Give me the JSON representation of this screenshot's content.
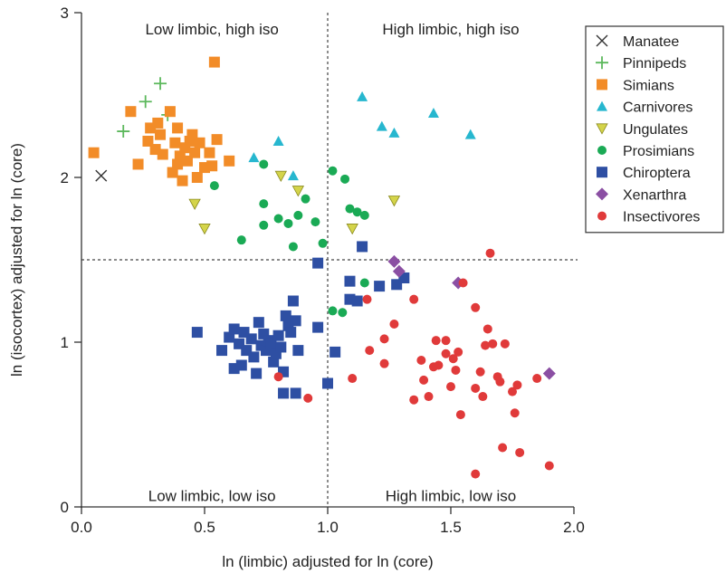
{
  "chart_data": {
    "type": "scatter",
    "title": "",
    "xlabel": "ln (limbic) adjusted for ln (core)",
    "ylabel": "ln (isocortex) adjusted for ln (core)",
    "xlim": [
      0,
      2
    ],
    "ylim": [
      0,
      3
    ],
    "xticks": [
      {
        "value": 0,
        "label": "0.0"
      },
      {
        "value": 0.5,
        "label": "0.5"
      },
      {
        "value": 1,
        "label": "1.0"
      },
      {
        "value": 1.5,
        "label": "1.5"
      },
      {
        "value": 2,
        "label": "2.0"
      }
    ],
    "yticks": [
      {
        "value": 0,
        "label": "0"
      },
      {
        "value": 1,
        "label": "1"
      },
      {
        "value": 2,
        "label": "2"
      },
      {
        "value": 3,
        "label": "3"
      }
    ],
    "grid": false,
    "reference_lines": {
      "x": 1.0,
      "y": 1.5
    },
    "quadrant_labels": [
      {
        "text": "Low limbic, high iso",
        "x": 0.53,
        "y": 2.9
      },
      {
        "text": "High limbic, high iso",
        "x": 1.5,
        "y": 2.9
      },
      {
        "text": "Low limbic, low iso",
        "x": 0.53,
        "y": 0.07
      },
      {
        "text": "High limbic, low iso",
        "x": 1.5,
        "y": 0.07
      }
    ],
    "legend_position": "right",
    "series": [
      {
        "name": "Manatee",
        "marker": "x",
        "color": "#333333",
        "points": [
          [
            0.08,
            2.01
          ]
        ]
      },
      {
        "name": "Pinnipeds",
        "marker": "plus",
        "color": "#5cb85c",
        "points": [
          [
            0.17,
            2.28
          ],
          [
            0.26,
            2.46
          ],
          [
            0.32,
            2.57
          ],
          [
            0.35,
            2.38
          ]
        ]
      },
      {
        "name": "Simians",
        "marker": "square",
        "color": "#f28c28",
        "points": [
          [
            0.05,
            2.15
          ],
          [
            0.2,
            2.4
          ],
          [
            0.23,
            2.08
          ],
          [
            0.27,
            2.22
          ],
          [
            0.28,
            2.3
          ],
          [
            0.3,
            2.17
          ],
          [
            0.31,
            2.33
          ],
          [
            0.32,
            2.26
          ],
          [
            0.33,
            2.14
          ],
          [
            0.36,
            2.4
          ],
          [
            0.37,
            2.03
          ],
          [
            0.38,
            2.21
          ],
          [
            0.39,
            2.3
          ],
          [
            0.39,
            2.08
          ],
          [
            0.4,
            2.13
          ],
          [
            0.41,
            1.98
          ],
          [
            0.42,
            2.18
          ],
          [
            0.43,
            2.1
          ],
          [
            0.44,
            2.22
          ],
          [
            0.45,
            2.26
          ],
          [
            0.46,
            2.15
          ],
          [
            0.47,
            2.0
          ],
          [
            0.48,
            2.21
          ],
          [
            0.5,
            2.06
          ],
          [
            0.52,
            2.15
          ],
          [
            0.53,
            2.07
          ],
          [
            0.55,
            2.23
          ],
          [
            0.6,
            2.1
          ],
          [
            0.54,
            2.7
          ]
        ]
      },
      {
        "name": "Carnivores",
        "marker": "triangle-up",
        "color": "#27b7cf",
        "points": [
          [
            0.7,
            2.12
          ],
          [
            0.8,
            2.22
          ],
          [
            0.86,
            2.01
          ],
          [
            1.14,
            2.49
          ],
          [
            1.22,
            2.31
          ],
          [
            1.27,
            2.27
          ],
          [
            1.43,
            2.39
          ],
          [
            1.58,
            2.26
          ]
        ]
      },
      {
        "name": "Ungulates",
        "marker": "triangle-down",
        "color": "#d4d44a",
        "points": [
          [
            0.46,
            1.84
          ],
          [
            0.5,
            1.69
          ],
          [
            0.81,
            2.01
          ],
          [
            0.88,
            1.92
          ],
          [
            1.1,
            1.69
          ],
          [
            1.27,
            1.86
          ]
        ]
      },
      {
        "name": "Prosimians",
        "marker": "circle",
        "color": "#1aaa55",
        "points": [
          [
            0.54,
            1.95
          ],
          [
            0.65,
            1.62
          ],
          [
            0.74,
            2.08
          ],
          [
            0.74,
            1.84
          ],
          [
            0.74,
            1.71
          ],
          [
            0.8,
            1.75
          ],
          [
            0.84,
            1.72
          ],
          [
            0.86,
            1.58
          ],
          [
            0.88,
            1.77
          ],
          [
            0.91,
            1.87
          ],
          [
            0.95,
            1.73
          ],
          [
            0.98,
            1.6
          ],
          [
            1.02,
            2.04
          ],
          [
            1.07,
            1.99
          ],
          [
            1.09,
            1.81
          ],
          [
            1.12,
            1.79
          ],
          [
            1.15,
            1.77
          ],
          [
            1.15,
            1.36
          ],
          [
            1.02,
            1.19
          ],
          [
            1.06,
            1.18
          ]
        ]
      },
      {
        "name": "Chiroptera",
        "marker": "square",
        "color": "#2e4fa3",
        "points": [
          [
            0.47,
            1.06
          ],
          [
            0.57,
            0.95
          ],
          [
            0.6,
            1.03
          ],
          [
            0.62,
            1.08
          ],
          [
            0.62,
            0.84
          ],
          [
            0.64,
            0.99
          ],
          [
            0.65,
            0.86
          ],
          [
            0.66,
            1.06
          ],
          [
            0.67,
            0.95
          ],
          [
            0.69,
            1.02
          ],
          [
            0.7,
            0.91
          ],
          [
            0.71,
            0.81
          ],
          [
            0.72,
            1.12
          ],
          [
            0.73,
            0.98
          ],
          [
            0.74,
            1.05
          ],
          [
            0.75,
            0.95
          ],
          [
            0.76,
            1.01
          ],
          [
            0.77,
            0.99
          ],
          [
            0.78,
            0.88
          ],
          [
            0.79,
            0.93
          ],
          [
            0.8,
            1.04
          ],
          [
            0.81,
            0.97
          ],
          [
            0.82,
            0.82
          ],
          [
            0.83,
            1.16
          ],
          [
            0.84,
            1.1
          ],
          [
            0.85,
            1.06
          ],
          [
            0.86,
            1.25
          ],
          [
            0.87,
            1.13
          ],
          [
            0.88,
            0.95
          ],
          [
            0.82,
            0.69
          ],
          [
            0.87,
            0.69
          ],
          [
            0.96,
            1.09
          ],
          [
            0.96,
            1.48
          ],
          [
            1.0,
            0.75
          ],
          [
            1.03,
            0.94
          ],
          [
            1.09,
            1.37
          ],
          [
            1.09,
            1.26
          ],
          [
            1.12,
            1.25
          ],
          [
            1.14,
            1.58
          ],
          [
            1.21,
            1.34
          ],
          [
            1.28,
            1.35
          ],
          [
            1.31,
            1.39
          ]
        ]
      },
      {
        "name": "Xenarthra",
        "marker": "diamond",
        "color": "#8b4fa3",
        "points": [
          [
            1.27,
            1.49
          ],
          [
            1.29,
            1.43
          ],
          [
            1.53,
            1.36
          ],
          [
            1.9,
            0.81
          ]
        ]
      },
      {
        "name": "Insectivores",
        "marker": "circle",
        "color": "#e03a3a",
        "points": [
          [
            0.8,
            0.79
          ],
          [
            0.92,
            0.66
          ],
          [
            1.1,
            0.78
          ],
          [
            1.16,
            1.26
          ],
          [
            1.17,
            0.95
          ],
          [
            1.23,
            1.02
          ],
          [
            1.23,
            0.87
          ],
          [
            1.27,
            1.11
          ],
          [
            1.35,
            1.26
          ],
          [
            1.35,
            0.65
          ],
          [
            1.38,
            0.89
          ],
          [
            1.39,
            0.77
          ],
          [
            1.41,
            0.67
          ],
          [
            1.43,
            0.85
          ],
          [
            1.44,
            1.01
          ],
          [
            1.45,
            0.86
          ],
          [
            1.48,
            1.01
          ],
          [
            1.48,
            0.93
          ],
          [
            1.5,
            0.73
          ],
          [
            1.51,
            0.9
          ],
          [
            1.52,
            0.83
          ],
          [
            1.53,
            0.94
          ],
          [
            1.54,
            0.56
          ],
          [
            1.55,
            1.36
          ],
          [
            1.6,
            1.21
          ],
          [
            1.6,
            0.72
          ],
          [
            1.62,
            0.82
          ],
          [
            1.63,
            0.67
          ],
          [
            1.64,
            0.98
          ],
          [
            1.65,
            1.08
          ],
          [
            1.66,
            1.54
          ],
          [
            1.67,
            0.99
          ],
          [
            1.69,
            0.79
          ],
          [
            1.7,
            0.76
          ],
          [
            1.71,
            0.36
          ],
          [
            1.72,
            0.99
          ],
          [
            1.75,
            0.7
          ],
          [
            1.76,
            0.57
          ],
          [
            1.77,
            0.74
          ],
          [
            1.78,
            0.33
          ],
          [
            1.85,
            0.78
          ],
          [
            1.9,
            0.25
          ],
          [
            1.6,
            0.2
          ]
        ]
      }
    ]
  }
}
